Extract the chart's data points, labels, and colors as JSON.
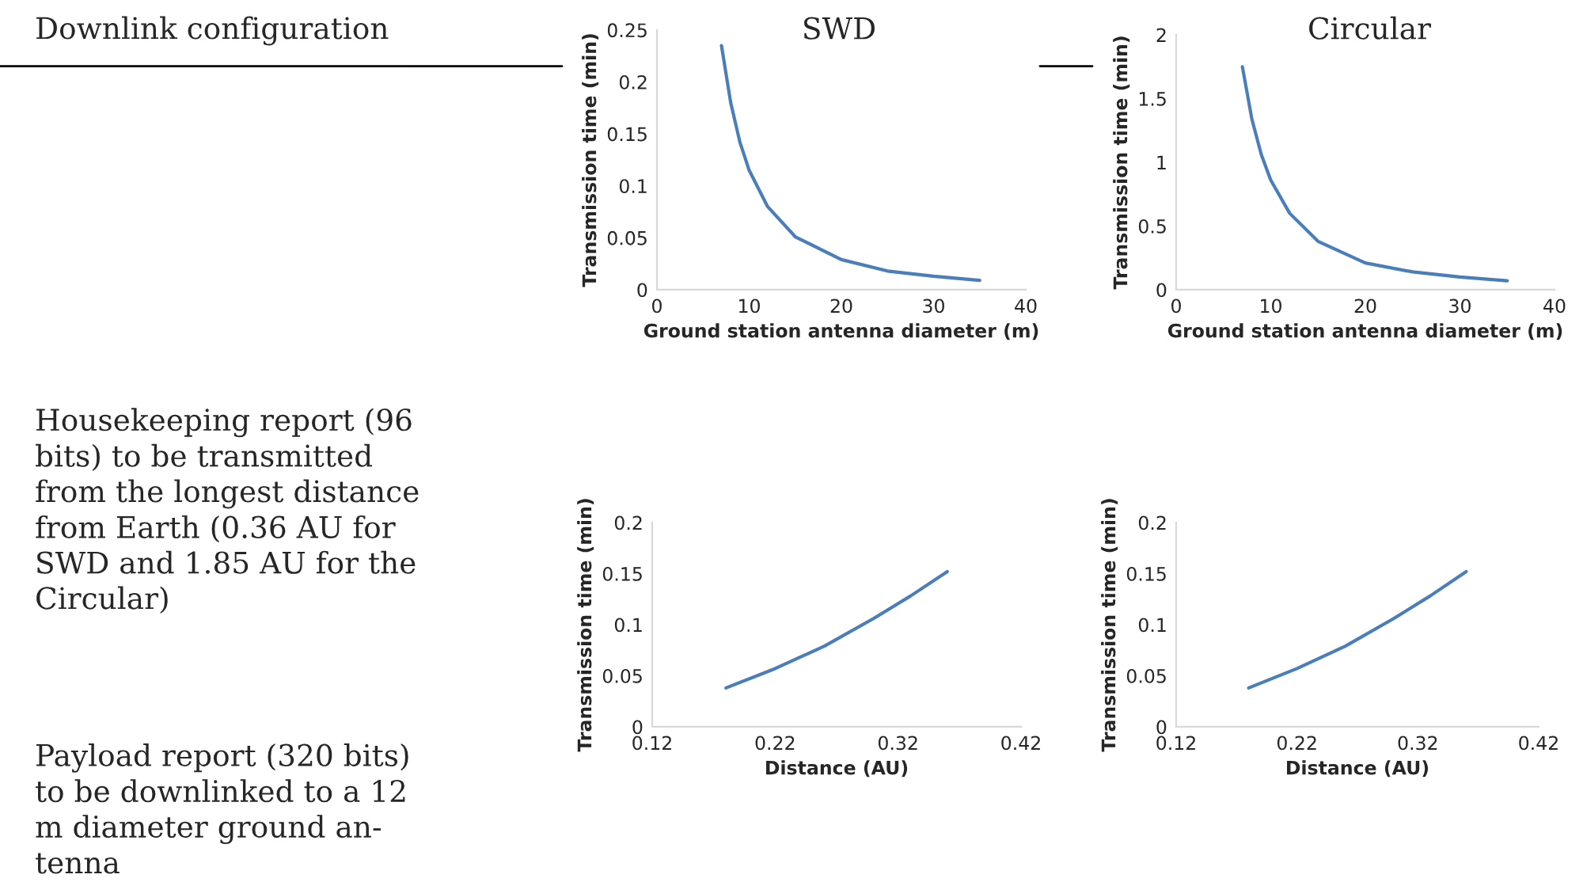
{
  "chart_data": [
    {
      "type": "line",
      "title": "SWD",
      "xlabel": "Ground station antenna diameter (m)",
      "ylabel": "Transmission time (min)",
      "annotations": [
        "Downlink configuration",
        "Housekeeping report (96\nbits) to be transmitted\nfrom the longest distance\nfrom Earth (0.36 AU for\nSWD and 1.85 AU for the\nCircular)"
      ],
      "x": [
        7,
        8,
        9,
        10,
        12,
        15,
        20,
        25,
        30,
        35
      ],
      "series": [
        {
          "color": "#4a7ebb",
          "values": [
            0.235,
            0.18,
            0.142,
            0.115,
            0.08,
            0.051,
            0.029,
            0.018,
            0.013,
            0.009
          ]
        }
      ],
      "xlim": [
        0,
        40
      ],
      "xticks": [
        0,
        10,
        20,
        30,
        40
      ],
      "ylim": [
        0,
        0.25
      ],
      "yticks": [
        0,
        0.05,
        0.1,
        0.15,
        0.2,
        0.25
      ],
      "grid": false,
      "legend": false
    },
    {
      "type": "line",
      "title": "Circular",
      "xlabel": "Ground station antenna diameter (m)",
      "ylabel": "Transmission time (min)",
      "x": [
        7,
        8,
        9,
        10,
        12,
        15,
        20,
        25,
        30,
        35
      ],
      "series": [
        {
          "color": "#4a7ebb",
          "values": [
            1.75,
            1.34,
            1.06,
            0.86,
            0.6,
            0.38,
            0.21,
            0.14,
            0.1,
            0.07
          ]
        }
      ],
      "xlim": [
        0,
        40
      ],
      "xticks": [
        0,
        10,
        20,
        30,
        40
      ],
      "ylim": [
        0,
        2
      ],
      "yticks": [
        0,
        0.5,
        1,
        1.5,
        2
      ],
      "grid": false,
      "legend": false
    },
    {
      "type": "line",
      "xlabel": "Distance (AU)",
      "ylabel": "Transmission time (min)",
      "annotations": [
        "Payload report (320 bits)\nto be downlinked to a 12\nm diameter ground an-\ntenna"
      ],
      "x": [
        0.18,
        0.22,
        0.26,
        0.3,
        0.33,
        0.36
      ],
      "series": [
        {
          "color": "#4a7ebb",
          "values": [
            0.038,
            0.057,
            0.079,
            0.106,
            0.128,
            0.152
          ]
        }
      ],
      "xlim": [
        0.12,
        0.42
      ],
      "xticks": [
        0.12,
        0.22,
        0.32,
        0.42
      ],
      "ylim": [
        0,
        0.2
      ],
      "yticks": [
        0,
        0.05,
        0.1,
        0.15,
        0.2
      ],
      "grid": false,
      "legend": false
    },
    {
      "type": "line",
      "xlabel": "Distance (AU)",
      "ylabel": "Transmission time (min)",
      "x": [
        0.18,
        0.22,
        0.26,
        0.3,
        0.33,
        0.36
      ],
      "series": [
        {
          "color": "#4a7ebb",
          "values": [
            0.038,
            0.057,
            0.079,
            0.106,
            0.128,
            0.152
          ]
        }
      ],
      "xlim": [
        0.12,
        0.42
      ],
      "xticks": [
        0.12,
        0.22,
        0.32,
        0.42
      ],
      "ylim": [
        0,
        0.2
      ],
      "yticks": [
        0,
        0.05,
        0.1,
        0.15,
        0.2
      ],
      "grid": false,
      "legend": false
    }
  ]
}
